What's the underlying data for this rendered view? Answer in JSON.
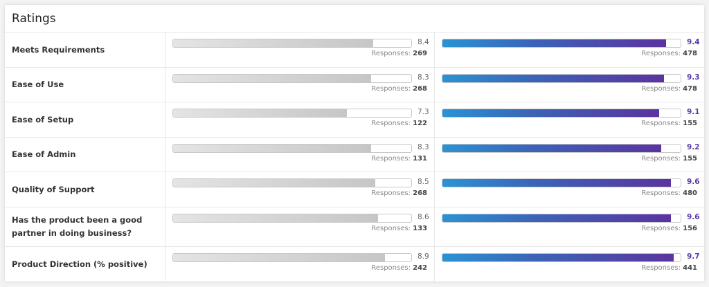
{
  "title": "Ratings",
  "responses_label": "Responses:",
  "colors": {
    "left_bar": "#c6c6c6",
    "right_bar_start": "#2a93d5",
    "right_bar_end": "#5b33a0",
    "right_value": "#5b3aa8"
  },
  "max_score": 10,
  "rows": [
    {
      "label": "Meets Requirements",
      "left": {
        "score": "8.4",
        "responses": "269"
      },
      "right": {
        "score": "9.4",
        "responses": "478"
      }
    },
    {
      "label": "Ease of Use",
      "left": {
        "score": "8.3",
        "responses": "268"
      },
      "right": {
        "score": "9.3",
        "responses": "478"
      }
    },
    {
      "label": "Ease of Setup",
      "left": {
        "score": "7.3",
        "responses": "122"
      },
      "right": {
        "score": "9.1",
        "responses": "155"
      }
    },
    {
      "label": "Ease of Admin",
      "left": {
        "score": "8.3",
        "responses": "131"
      },
      "right": {
        "score": "9.2",
        "responses": "155"
      }
    },
    {
      "label": "Quality of Support",
      "left": {
        "score": "8.5",
        "responses": "268"
      },
      "right": {
        "score": "9.6",
        "responses": "480"
      }
    },
    {
      "label": "Has the product been a good partner in doing business?",
      "left": {
        "score": "8.6",
        "responses": "133"
      },
      "right": {
        "score": "9.6",
        "responses": "156"
      }
    },
    {
      "label": "Product Direction (% positive)",
      "left": {
        "score": "8.9",
        "responses": "242"
      },
      "right": {
        "score": "9.7",
        "responses": "441"
      }
    }
  ]
}
